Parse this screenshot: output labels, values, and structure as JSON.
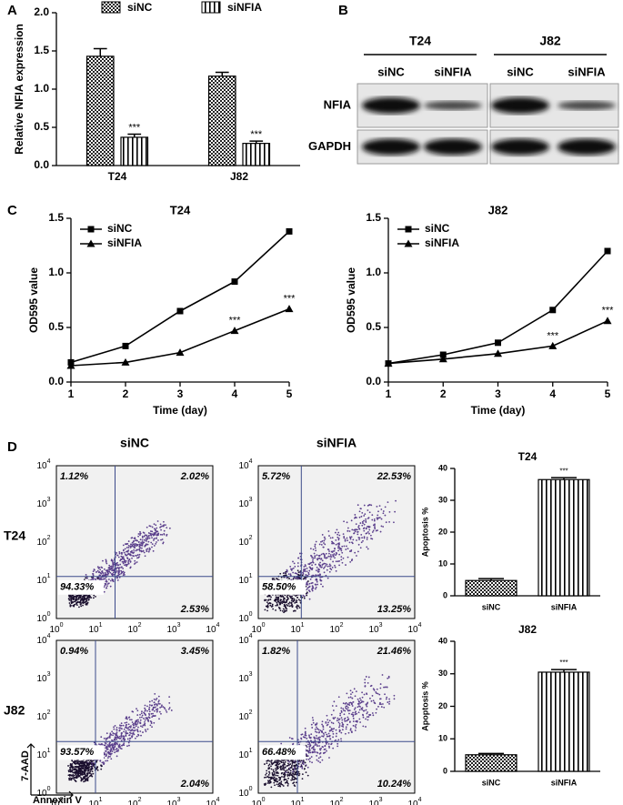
{
  "panel_labels": [
    "A",
    "B",
    "C",
    "D"
  ],
  "chart_data": [
    {
      "type": "bar",
      "ylabel": "Relative NFIA expression",
      "categories": [
        "T24",
        "J82"
      ],
      "series": [
        {
          "name": "siNC",
          "color": "#000000",
          "pattern": "checker",
          "values": [
            1.43,
            1.17
          ],
          "errors": [
            0.1,
            0.05
          ]
        },
        {
          "name": "siNFIA",
          "color": "#000000",
          "pattern": "vstripes",
          "values": [
            0.37,
            0.29
          ],
          "errors": [
            0.04,
            0.03
          ],
          "significance": [
            "***",
            "***"
          ]
        }
      ],
      "ylim": [
        0,
        2
      ],
      "yticks": [
        {
          "value": 0,
          "label": "0.0"
        },
        0.5,
        {
          "value": 1,
          "label": "1.0"
        },
        1.5,
        {
          "value": 2,
          "label": "2.0"
        }
      ],
      "legend": "top"
    },
    {
      "type": "line",
      "title": "T24",
      "xlabel": "Time (day)",
      "ylabel": "OD595 value",
      "x": [
        1,
        2,
        3,
        4,
        5
      ],
      "series": [
        {
          "name": "siNC",
          "color": "#000000",
          "marker": "square",
          "values": [
            0.18,
            0.33,
            0.65,
            0.92,
            1.38
          ]
        },
        {
          "name": "siNFIA",
          "color": "#000000",
          "marker": "triangle",
          "values": [
            0.15,
            0.18,
            0.27,
            0.47,
            0.67
          ]
        }
      ],
      "annotations": [
        {
          "x": 4,
          "text": "***"
        },
        {
          "x": 5,
          "text": "***"
        }
      ],
      "xlim": [
        1,
        5
      ],
      "xticks": [
        1,
        2,
        3,
        4,
        5
      ],
      "ylim": [
        0,
        1.5
      ],
      "yticks": [
        {
          "value": 0,
          "label": "0.0"
        },
        0.5,
        {
          "value": 1,
          "label": "1.0"
        },
        1.5
      ],
      "legend": "upper left"
    },
    {
      "type": "line",
      "title": "J82",
      "xlabel": "Time (day)",
      "ylabel": "OD595 value",
      "x": [
        1,
        2,
        3,
        4,
        5
      ],
      "series": [
        {
          "name": "siNC",
          "color": "#000000",
          "marker": "square",
          "values": [
            0.17,
            0.25,
            0.36,
            0.66,
            1.2
          ]
        },
        {
          "name": "siNFIA",
          "color": "#000000",
          "marker": "triangle",
          "values": [
            0.17,
            0.21,
            0.26,
            0.33,
            0.56
          ]
        }
      ],
      "annotations": [
        {
          "x": 4,
          "text": "***"
        },
        {
          "x": 5,
          "text": "***"
        }
      ],
      "xlim": [
        1,
        5
      ],
      "xticks": [
        1,
        2,
        3,
        4,
        5
      ],
      "ylim": [
        0,
        1.5
      ],
      "yticks": [
        {
          "value": 0,
          "label": "0.0"
        },
        0.5,
        {
          "value": 1,
          "label": "1.0"
        },
        1.5
      ],
      "legend": "upper left"
    },
    {
      "type": "bar",
      "title": "T24",
      "ylabel": "Apoptosis %",
      "categories": [
        "siNC",
        "siNFIA"
      ],
      "values": [
        4.8,
        36.5
      ],
      "errors": [
        0.6,
        0.6
      ],
      "patterns": [
        "checker",
        "vstripes"
      ],
      "color": "#000000",
      "significance": [
        null,
        "***"
      ],
      "ylim": [
        0,
        40
      ],
      "yticks": [
        0,
        10,
        20,
        30,
        40
      ]
    },
    {
      "type": "bar",
      "title": "J82",
      "ylabel": "Apoptosis %",
      "categories": [
        "siNC",
        "siNFIA"
      ],
      "values": [
        5.1,
        30.5
      ],
      "errors": [
        0.4,
        0.8
      ],
      "patterns": [
        "checker",
        "vstripes"
      ],
      "color": "#000000",
      "significance": [
        null,
        "***"
      ],
      "ylim": [
        0,
        40
      ],
      "yticks": [
        0,
        10,
        20,
        30,
        40
      ]
    }
  ],
  "western_blot": {
    "cell_lines": [
      "T24",
      "J82"
    ],
    "conditions": [
      "siNC",
      "siNFIA",
      "siNC",
      "siNFIA"
    ],
    "proteins": [
      "NFIA",
      "GAPDH"
    ]
  },
  "flow_cytometry": {
    "columns": [
      "siNC",
      "siNFIA"
    ],
    "rows": [
      "T24",
      "J82"
    ],
    "tick_base": "10",
    "tick_exponents": [
      "0",
      "1",
      "2",
      "3",
      "4"
    ],
    "xlabel": "Annexin V",
    "ylabel": "7-AAD",
    "plots": [
      {
        "quadrants": [
          "1.12%",
          "2.02%",
          "94.33%",
          "2.53%"
        ]
      },
      {
        "quadrants": [
          "5.72%",
          "22.53%",
          "58.50%",
          "13.25%"
        ]
      },
      {
        "quadrants": [
          "0.94%",
          "3.45%",
          "93.57%",
          "2.04%"
        ]
      },
      {
        "quadrants": [
          "1.82%",
          "21.46%",
          "66.48%",
          "10.24%"
        ]
      }
    ]
  }
}
